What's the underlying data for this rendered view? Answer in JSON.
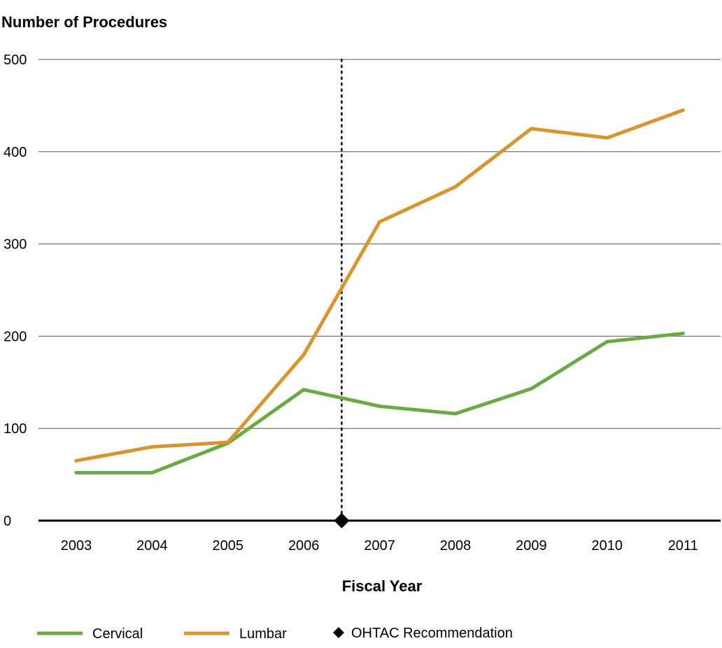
{
  "chart_data": {
    "type": "line",
    "title": "",
    "ylabel": "Number of Procedures",
    "xlabel": "Fiscal Year",
    "categories": [
      "2003",
      "2004",
      "2005",
      "2006",
      "2007",
      "2008",
      "2009",
      "2010",
      "2011"
    ],
    "ylim": [
      0,
      500
    ],
    "yticks": [
      "0",
      "100",
      "200",
      "300",
      "400",
      "500"
    ],
    "grid": true,
    "series": [
      {
        "name": "Cervical",
        "color": "#6aaa45",
        "values": [
          52,
          52,
          84,
          142,
          124,
          116,
          143,
          194,
          203
        ]
      },
      {
        "name": "Lumbar",
        "color": "#d8952f",
        "values": [
          65,
          80,
          85,
          180,
          324,
          362,
          425,
          415,
          445
        ]
      }
    ],
    "annotation": {
      "label": "OHTAC Recommendation",
      "x_between": [
        "2006",
        "2007"
      ],
      "marker": "diamond",
      "line_style": "dotted"
    },
    "legend_position": "bottom"
  }
}
